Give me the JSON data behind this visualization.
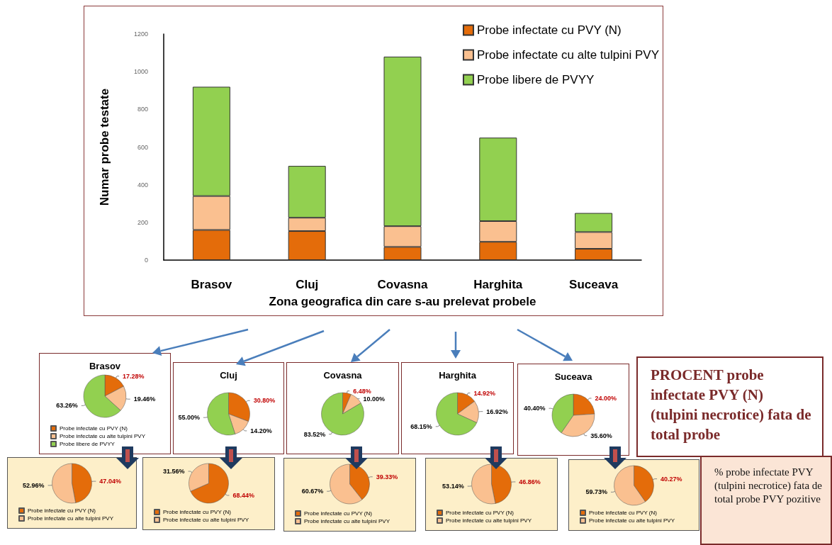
{
  "chart_data": [
    {
      "type": "bar",
      "stacked": true,
      "categories": [
        "Brasov",
        "Cluj",
        "Covasna",
        "Harghita",
        "Suceava"
      ],
      "xlabel": "Zona geografica din care s-au prelevat probele",
      "ylabel": "Numar probe testate",
      "ylim": [
        0,
        1200
      ],
      "yticks": [
        0,
        200,
        400,
        600,
        800,
        1000,
        1200
      ],
      "legend": "top right",
      "series": [
        {
          "name": "Probe infectate cu PVY (N)",
          "color": "#e46c0a",
          "values": [
            160,
            154,
            70,
            97,
            60
          ]
        },
        {
          "name": "Probe infectate cu alte tulpini PVY",
          "color": "#fac090",
          "values": [
            180,
            71,
            110,
            110,
            89
          ]
        },
        {
          "name": "Probe libere de PVYY",
          "color": "#92d050",
          "values": [
            580,
            275,
            900,
            443,
            101
          ]
        }
      ]
    },
    {
      "type": "pie",
      "title": "Brasov",
      "categories": [
        "Probe infectate cu PVY (N)",
        "Probe infectate cu alte tulpini PVY",
        "Probe libere de PVYY"
      ],
      "values": [
        17.28,
        19.46,
        63.26
      ],
      "colors": [
        "#e46c0a",
        "#fac090",
        "#92d050"
      ],
      "value_labels": [
        "17.28%",
        "19.46%",
        "63.26%"
      ],
      "legend": "bottom"
    },
    {
      "type": "pie",
      "title": "Cluj",
      "categories": [
        null,
        null,
        null
      ],
      "values": [
        30.8,
        14.2,
        55.0
      ],
      "colors": [
        "#e46c0a",
        "#fac090",
        "#92d050"
      ],
      "value_labels": [
        "30.80%",
        "14.20%",
        "55.00%"
      ]
    },
    {
      "type": "pie",
      "title": "Covasna",
      "categories": [
        null,
        null,
        null
      ],
      "values": [
        6.48,
        10.0,
        83.52
      ],
      "colors": [
        "#e46c0a",
        "#fac090",
        "#92d050"
      ],
      "value_labels": [
        "6.48%",
        "10.00%",
        "83.52%"
      ]
    },
    {
      "type": "pie",
      "title": "Harghita",
      "categories": [
        null,
        null,
        null
      ],
      "values": [
        14.92,
        16.92,
        68.15
      ],
      "colors": [
        "#e46c0a",
        "#fac090",
        "#92d050"
      ],
      "value_labels": [
        "14.92%",
        "16.92%",
        "68.15%"
      ]
    },
    {
      "type": "pie",
      "title": "Suceava",
      "categories": [
        null,
        null,
        null
      ],
      "values": [
        24.0,
        35.6,
        40.4
      ],
      "colors": [
        "#e46c0a",
        "#fac090",
        "#92d050"
      ],
      "value_labels": [
        "24.00%",
        "35.60%",
        "40.40%"
      ]
    },
    {
      "type": "pie",
      "categories": [
        "Probe infectate cu PVY (N)",
        "Probe infectate cu alte tulpini PVY"
      ],
      "values": [
        47.04,
        52.96
      ],
      "colors": [
        "#e46c0a",
        "#fac090"
      ],
      "value_labels": [
        "47.04%",
        "52.96%"
      ],
      "legend": "bottom"
    },
    {
      "type": "pie",
      "categories": [
        "Probe infectate cu PVY (N)",
        "Probe infectate cu alte tulpini PVY"
      ],
      "values": [
        68.44,
        31.56
      ],
      "colors": [
        "#e46c0a",
        "#fac090"
      ],
      "value_labels": [
        "68.44%",
        "31.56%"
      ],
      "legend": "bottom"
    },
    {
      "type": "pie",
      "categories": [
        "Probe infectate cu PVY (N)",
        "Probe infectate cu alte tulpini PVY"
      ],
      "values": [
        39.33,
        60.67
      ],
      "colors": [
        "#e46c0a",
        "#fac090"
      ],
      "value_labels": [
        "39.33%",
        "60.67%"
      ],
      "legend": "bottom"
    },
    {
      "type": "pie",
      "categories": [
        "Probe infectate cu PVY (N)",
        "Probe infectate cu alte tulpini PVY"
      ],
      "values": [
        46.86,
        53.14
      ],
      "colors": [
        "#e46c0a",
        "#fac090"
      ],
      "value_labels": [
        "46.86%",
        "53.14%"
      ],
      "legend": "bottom"
    },
    {
      "type": "pie",
      "categories": [
        "Probe infectate cu PVY (N)",
        "Probe infectate cu alte tulpini PVY"
      ],
      "values": [
        40.27,
        59.73
      ],
      "colors": [
        "#e46c0a",
        "#fac090"
      ],
      "value_labels": [
        "40.27%",
        "59.73%"
      ],
      "legend": "bottom"
    },
    {
      "type": "other",
      "title": "PROCENT probe infectate PVY (N) (tulpini necrotice) fata de total probe"
    },
    {
      "type": "other",
      "title": "% probe infectate PVY (tulpini necrotice) fata de total probe PVY pozitive"
    }
  ]
}
